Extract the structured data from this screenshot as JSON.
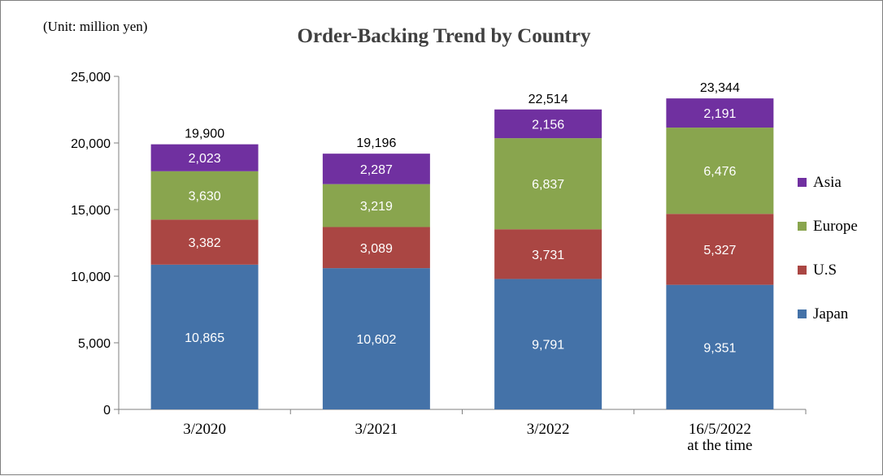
{
  "chart_data": {
    "type": "bar",
    "stacked": true,
    "title": "Order-Backing Trend by Country",
    "unit_note": "(Unit: million yen)",
    "categories": [
      [
        "3/2020"
      ],
      [
        "3/2021"
      ],
      [
        "3/2022"
      ],
      [
        "16/5/2022",
        "at the time"
      ]
    ],
    "series": [
      {
        "name": "Japan",
        "color": "#4472a8",
        "values": [
          10865,
          10602,
          9791,
          9351
        ]
      },
      {
        "name": "U.S",
        "color": "#aa4643",
        "values": [
          3382,
          3089,
          3731,
          5327
        ]
      },
      {
        "name": "Europe",
        "color": "#89a54e",
        "values": [
          3630,
          3219,
          6837,
          6476
        ]
      },
      {
        "name": "Asia",
        "color": "#7030a0",
        "values": [
          2023,
          2287,
          2156,
          2191
        ]
      }
    ],
    "segment_labels": [
      [
        "10,865",
        "3,382",
        "3,630",
        "2,023"
      ],
      [
        "10,602",
        "3,089",
        "3,219",
        "2,287"
      ],
      [
        "9,791",
        "3,731",
        "6,837",
        "2,156"
      ],
      [
        "9,351",
        "5,327",
        "6,476",
        "2,191"
      ]
    ],
    "totals": [
      19900,
      19196,
      22514,
      23344
    ],
    "total_labels": [
      "19,900",
      "19,196",
      "22,514",
      "23,344"
    ],
    "ylim": [
      0,
      25000
    ],
    "yticks": [
      0,
      5000,
      10000,
      15000,
      20000,
      25000
    ],
    "ytick_labels": [
      "0",
      "5,000",
      "10,000",
      "15,000",
      "20,000",
      "25,000"
    ],
    "legend_order": [
      "Asia",
      "Europe",
      "U.S",
      "Japan"
    ],
    "legend_position": "right",
    "grid": false
  }
}
